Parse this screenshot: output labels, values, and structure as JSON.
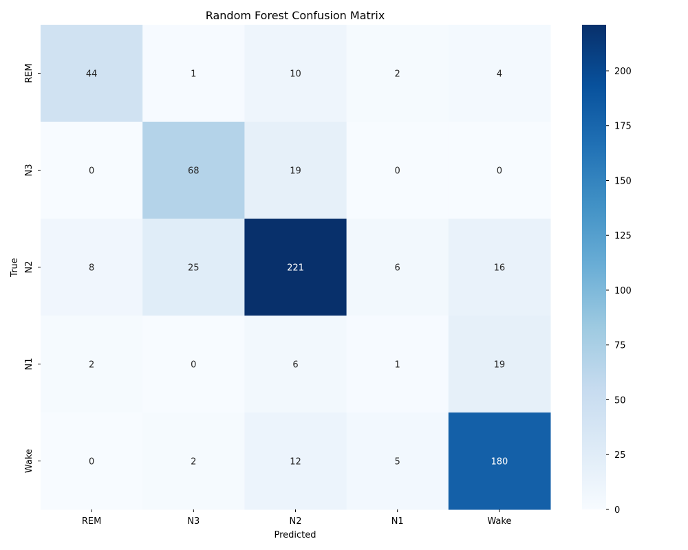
{
  "chart_data": {
    "type": "heatmap",
    "title": "Random Forest Confusion Matrix",
    "xlabel": "Predicted",
    "ylabel": "True",
    "x_categories": [
      "REM",
      "N3",
      "N2",
      "N1",
      "Wake"
    ],
    "y_categories": [
      "REM",
      "N3",
      "N2",
      "N1",
      "Wake"
    ],
    "values": [
      [
        44,
        1,
        10,
        2,
        4
      ],
      [
        0,
        68,
        19,
        0,
        0
      ],
      [
        8,
        25,
        221,
        6,
        16
      ],
      [
        2,
        0,
        6,
        1,
        19
      ],
      [
        0,
        2,
        12,
        5,
        180
      ]
    ],
    "colormap": "Blues",
    "colors": [
      "#f7fbff",
      "#deebf7",
      "#c6dbef",
      "#9ecae1",
      "#6baed6",
      "#4292c6",
      "#2171b5",
      "#08519c",
      "#08306b"
    ],
    "vmin": 0,
    "vmax": 221,
    "colorbar_ticks": [
      0,
      25,
      50,
      75,
      100,
      125,
      150,
      175,
      200
    ],
    "annotation_light_color": "#262626",
    "annotation_dark_color": "#ffffff"
  }
}
